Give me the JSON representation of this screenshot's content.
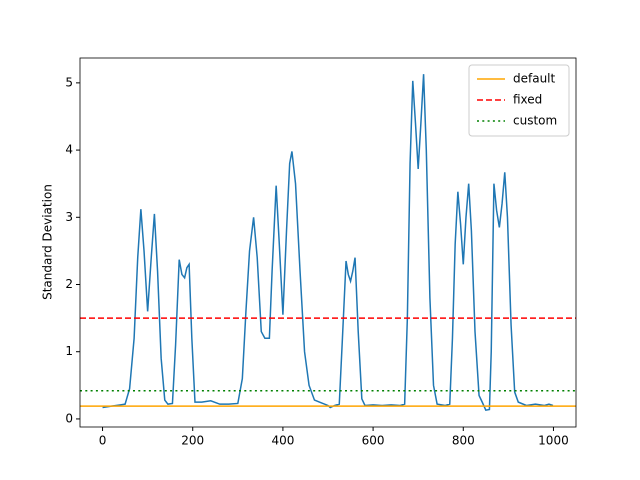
{
  "chart_data": {
    "type": "line",
    "ylabel": "Standard Deviation",
    "xlim": [
      -50,
      1050
    ],
    "ylim": [
      -0.12,
      5.37
    ],
    "xticks": [
      0,
      200,
      400,
      600,
      800,
      1000
    ],
    "yticks": [
      0,
      1,
      2,
      3,
      4,
      5
    ],
    "legend": "upper right",
    "series": [
      {
        "color": "#1f77b4",
        "x": [
          0,
          20,
          40,
          50,
          60,
          70,
          78,
          85,
          92,
          100,
          108,
          115,
          122,
          130,
          138,
          145,
          155,
          162,
          170,
          176,
          182,
          187,
          192,
          198,
          205,
          220,
          240,
          260,
          280,
          300,
          310,
          318,
          326,
          335,
          343,
          352,
          360,
          370,
          376,
          385,
          392,
          400,
          408,
          415,
          420,
          428,
          438,
          448,
          458,
          470,
          485,
          500,
          505,
          515,
          525,
          532,
          540,
          545,
          550,
          555,
          560,
          567,
          575,
          582,
          600,
          620,
          640,
          660,
          670,
          676,
          682,
          688,
          694,
          700,
          706,
          712,
          718,
          726,
          734,
          742,
          760,
          770,
          776,
          782,
          788,
          794,
          800,
          806,
          812,
          818,
          826,
          835,
          842,
          850,
          858,
          862,
          868,
          874,
          880,
          886,
          892,
          898,
          906,
          914,
          922,
          940,
          960,
          980,
          990,
          999
        ],
        "values": [
          0.17,
          0.19,
          0.21,
          0.22,
          0.45,
          1.2,
          2.4,
          3.12,
          2.5,
          1.6,
          2.4,
          3.05,
          2.2,
          0.9,
          0.28,
          0.22,
          0.23,
          1.1,
          2.37,
          2.15,
          2.1,
          2.25,
          2.3,
          1.2,
          0.25,
          0.25,
          0.27,
          0.22,
          0.22,
          0.23,
          0.6,
          1.6,
          2.5,
          3.0,
          2.4,
          1.3,
          1.2,
          1.2,
          2.2,
          3.47,
          2.6,
          1.55,
          2.8,
          3.8,
          3.98,
          3.5,
          2.2,
          1.0,
          0.5,
          0.28,
          0.24,
          0.2,
          0.17,
          0.2,
          0.22,
          1.2,
          2.35,
          2.15,
          2.05,
          2.2,
          2.4,
          1.3,
          0.3,
          0.2,
          0.21,
          0.2,
          0.21,
          0.2,
          0.22,
          1.5,
          3.8,
          5.03,
          4.4,
          3.72,
          4.4,
          5.13,
          4.0,
          1.8,
          0.5,
          0.22,
          0.2,
          0.22,
          1.2,
          2.6,
          3.38,
          2.9,
          2.3,
          3.0,
          3.5,
          2.8,
          1.3,
          0.35,
          0.25,
          0.13,
          0.14,
          1.0,
          3.5,
          3.1,
          2.85,
          3.2,
          3.67,
          3.0,
          1.4,
          0.4,
          0.25,
          0.2,
          0.22,
          0.2,
          0.22,
          0.2
        ]
      }
    ],
    "hlines": [
      {
        "name": "default",
        "color": "#ffa500",
        "value": 0.19,
        "style": "solid"
      },
      {
        "name": "fixed",
        "color": "#ff0000",
        "value": 1.5,
        "style": "dashed"
      },
      {
        "name": "custom",
        "color": "#008000",
        "value": 0.42,
        "style": "dotted"
      }
    ]
  }
}
